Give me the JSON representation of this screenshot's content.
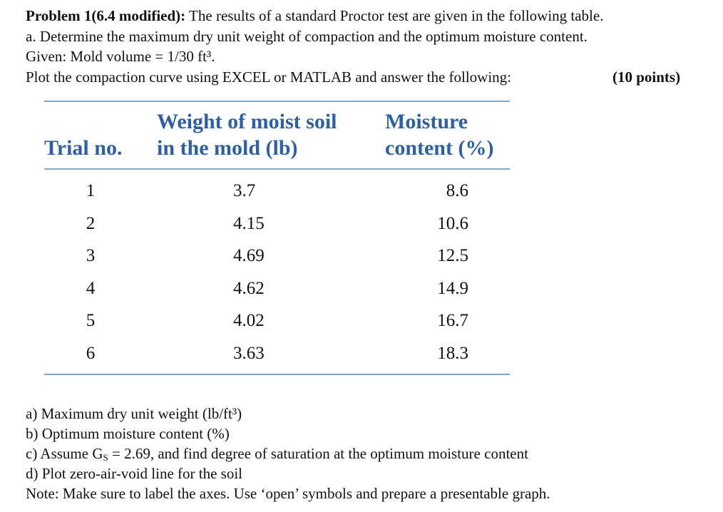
{
  "header": {
    "label": "Problem 1(6.4 modified):",
    "text": "The results of a standard Proctor test are given in the following table.",
    "lines": [
      "a. Determine the maximum dry unit weight of compaction and the optimum moisture content.",
      "Given: Mold volume = 1/30 ft³.",
      "Plot the compaction curve using EXCEL or MATLAB and answer the following:"
    ],
    "points": "(10 points)"
  },
  "table": {
    "columns": [
      [
        "Trial no."
      ],
      [
        "Weight of moist soil",
        "in the mold (lb)"
      ],
      [
        "Moisture",
        "content (%)"
      ]
    ],
    "rows": [
      [
        "1",
        "3.7",
        "8.6"
      ],
      [
        "2",
        "4.15",
        "10.6"
      ],
      [
        "3",
        "4.69",
        "12.5"
      ],
      [
        "4",
        "4.62",
        "14.9"
      ],
      [
        "5",
        "4.02",
        "16.7"
      ],
      [
        "6",
        "3.63",
        "18.3"
      ]
    ]
  },
  "questions": {
    "a": "a) Maximum dry unit weight (lb/ft³)",
    "b": "b) Optimum moisture content (%)",
    "c": [
      "c) Assume G",
      "S",
      " = 2.69, and find degree of saturation at the optimum moisture content"
    ],
    "d": "d) Plot zero-air-void line for the soil",
    "note": "Note: Make sure to label the axes. Use ‘open’ symbols and prepare a presentable graph."
  }
}
